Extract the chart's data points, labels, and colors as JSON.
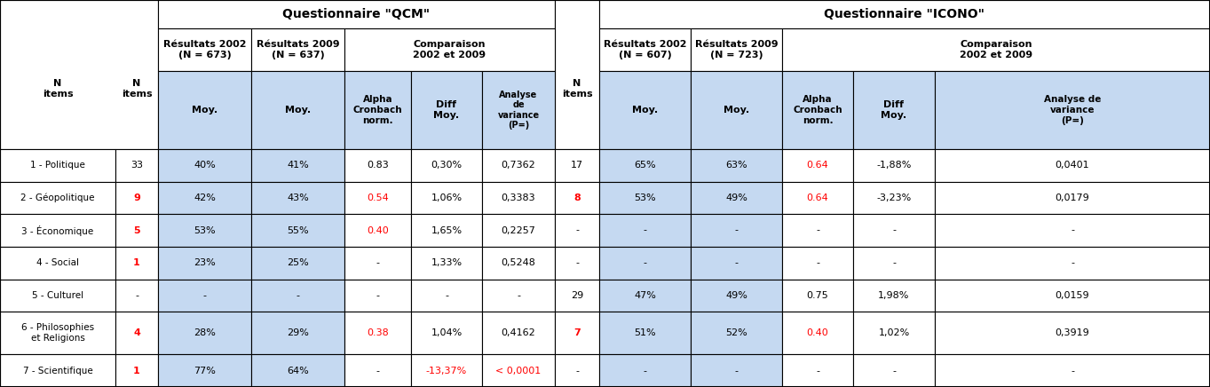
{
  "qcm_header": "Questionnaire \"QCM\"",
  "icono_header": "Questionnaire \"ICONO\"",
  "light_blue": "#C5D9F1",
  "white": "#FFFFFF",
  "border_color": "#000000",
  "row_labels": [
    "1 - Politique",
    "2 - Géopolitique",
    "3 - Économique",
    "4 - Social",
    "5 - Culturel",
    "6 - Philosophies\net Religions",
    "7 - Scientifique"
  ],
  "qcm_data": [
    {
      "n": "33",
      "n_color": "black",
      "moy2002": "40%",
      "moy2009": "41%",
      "alpha": "0.83",
      "alpha_color": "black",
      "diff": "0,30%",
      "diff_color": "black",
      "variance": "0,7362",
      "variance_color": "black"
    },
    {
      "n": "9",
      "n_color": "red",
      "moy2002": "42%",
      "moy2009": "43%",
      "alpha": "0.54",
      "alpha_color": "red",
      "diff": "1,06%",
      "diff_color": "black",
      "variance": "0,3383",
      "variance_color": "black"
    },
    {
      "n": "5",
      "n_color": "red",
      "moy2002": "53%",
      "moy2009": "55%",
      "alpha": "0.40",
      "alpha_color": "red",
      "diff": "1,65%",
      "diff_color": "black",
      "variance": "0,2257",
      "variance_color": "black"
    },
    {
      "n": "1",
      "n_color": "red",
      "moy2002": "23%",
      "moy2009": "25%",
      "alpha": "-",
      "alpha_color": "black",
      "diff": "1,33%",
      "diff_color": "black",
      "variance": "0,5248",
      "variance_color": "black"
    },
    {
      "n": "-",
      "n_color": "black",
      "moy2002": "-",
      "moy2009": "-",
      "alpha": "-",
      "alpha_color": "black",
      "diff": "-",
      "diff_color": "black",
      "variance": "-",
      "variance_color": "black"
    },
    {
      "n": "4",
      "n_color": "red",
      "moy2002": "28%",
      "moy2009": "29%",
      "alpha": "0.38",
      "alpha_color": "red",
      "diff": "1,04%",
      "diff_color": "black",
      "variance": "0,4162",
      "variance_color": "black"
    },
    {
      "n": "1",
      "n_color": "red",
      "moy2002": "77%",
      "moy2009": "64%",
      "alpha": "-",
      "alpha_color": "black",
      "diff": "-13,37%",
      "diff_color": "red",
      "variance": "< 0,0001",
      "variance_color": "red"
    }
  ],
  "icono_data": [
    {
      "n": "17",
      "n_color": "black",
      "moy2002": "65%",
      "moy2009": "63%",
      "alpha": "0.64",
      "alpha_color": "red",
      "diff": "-1,88%",
      "diff_color": "black",
      "variance": "0,0401",
      "variance_color": "black"
    },
    {
      "n": "8",
      "n_color": "red",
      "moy2002": "53%",
      "moy2009": "49%",
      "alpha": "0.64",
      "alpha_color": "red",
      "diff": "-3,23%",
      "diff_color": "black",
      "variance": "0,0179",
      "variance_color": "black"
    },
    {
      "n": "-",
      "n_color": "black",
      "moy2002": "-",
      "moy2009": "-",
      "alpha": "-",
      "alpha_color": "black",
      "diff": "-",
      "diff_color": "black",
      "variance": "-",
      "variance_color": "black"
    },
    {
      "n": "-",
      "n_color": "black",
      "moy2002": "-",
      "moy2009": "-",
      "alpha": "-",
      "alpha_color": "black",
      "diff": "-",
      "diff_color": "black",
      "variance": "-",
      "variance_color": "black"
    },
    {
      "n": "29",
      "n_color": "black",
      "moy2002": "47%",
      "moy2009": "49%",
      "alpha": "0.75",
      "alpha_color": "black",
      "diff": "1,98%",
      "diff_color": "black",
      "variance": "0,0159",
      "variance_color": "black"
    },
    {
      "n": "7",
      "n_color": "red",
      "moy2002": "51%",
      "moy2009": "52%",
      "alpha": "0.40",
      "alpha_color": "red",
      "diff": "1,02%",
      "diff_color": "black",
      "variance": "0,3919",
      "variance_color": "black"
    },
    {
      "n": "-",
      "n_color": "black",
      "moy2002": "-",
      "moy2009": "-",
      "alpha": "-",
      "alpha_color": "black",
      "diff": "-",
      "diff_color": "black",
      "variance": "-",
      "variance_color": "black"
    }
  ]
}
